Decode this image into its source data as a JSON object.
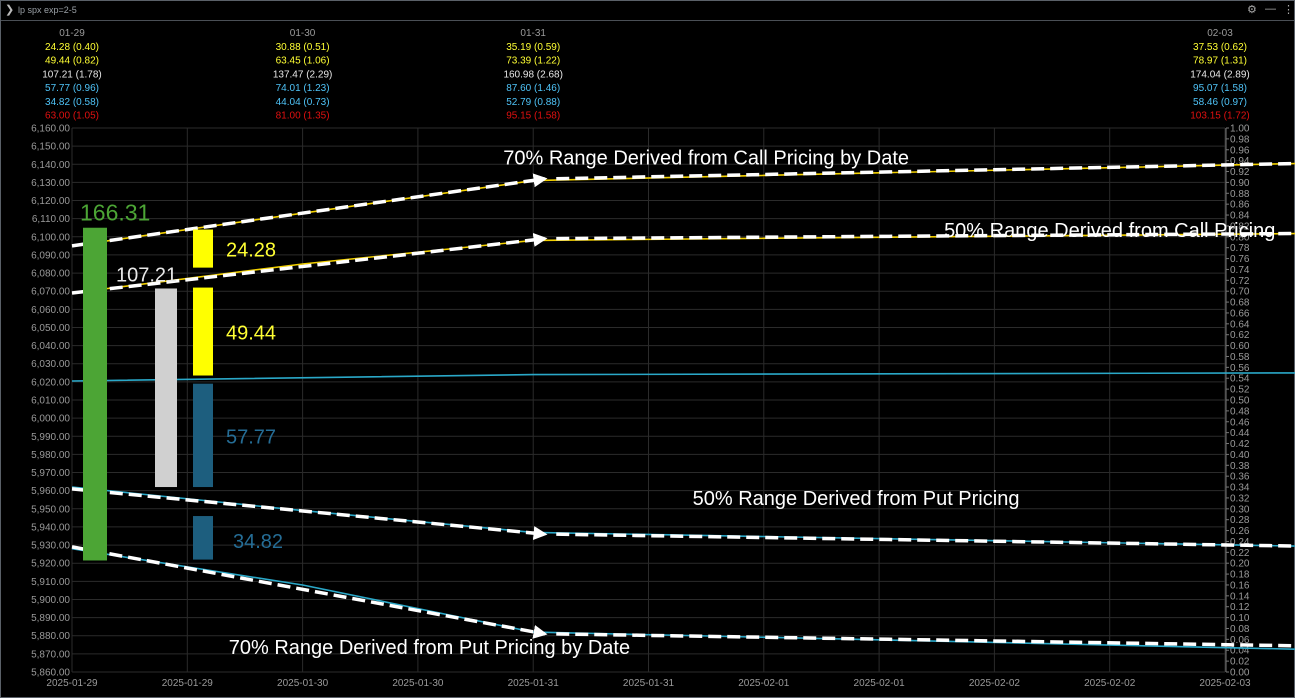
{
  "window": {
    "title": "lp spx exp=2-5"
  },
  "chart_data": {
    "type": "line",
    "xlabels": [
      "2025-01-29",
      "2025-01-29",
      "2025-01-30",
      "2025-01-30",
      "2025-01-31",
      "2025-01-31",
      "2025-02-01",
      "2025-02-01",
      "2025-02-02",
      "2025-02-02",
      "2025-02-03"
    ],
    "ylim_left": [
      5860,
      6160
    ],
    "ylim_right": [
      0,
      1
    ],
    "grid": true,
    "top_table": [
      {
        "date": "01-29",
        "rows": [
          {
            "text": "24.28 (0.40)",
            "color": "#ffff33"
          },
          {
            "text": "49.44 (0.82)",
            "color": "#ffff33"
          },
          {
            "text": "107.21 (1.78)",
            "color": "#e6e6e6"
          },
          {
            "text": "57.77 (0.96)",
            "color": "#4fc3f7"
          },
          {
            "text": "34.82 (0.58)",
            "color": "#4fc3f7"
          },
          {
            "text": "63.00 (1.05)",
            "color": "#e01010"
          }
        ]
      },
      {
        "date": "01-30",
        "rows": [
          {
            "text": "30.88 (0.51)",
            "color": "#ffff33"
          },
          {
            "text": "63.45 (1.06)",
            "color": "#ffff33"
          },
          {
            "text": "137.47 (2.29)",
            "color": "#e6e6e6"
          },
          {
            "text": "74.01 (1.23)",
            "color": "#4fc3f7"
          },
          {
            "text": "44.04 (0.73)",
            "color": "#4fc3f7"
          },
          {
            "text": "81.00 (1.35)",
            "color": "#e01010"
          }
        ]
      },
      {
        "date": "01-31",
        "rows": [
          {
            "text": "35.19 (0.59)",
            "color": "#ffff33"
          },
          {
            "text": "73.39 (1.22)",
            "color": "#ffff33"
          },
          {
            "text": "160.98 (2.68)",
            "color": "#e6e6e6"
          },
          {
            "text": "87.60 (1.46)",
            "color": "#4fc3f7"
          },
          {
            "text": "52.79 (0.88)",
            "color": "#4fc3f7"
          },
          {
            "text": "95.15 (1.58)",
            "color": "#e01010"
          }
        ]
      },
      {
        "date": "02-03",
        "rows": [
          {
            "text": "37.53 (0.62)",
            "color": "#ffff33"
          },
          {
            "text": "78.97 (1.31)",
            "color": "#ffff33"
          },
          {
            "text": "174.04 (2.89)",
            "color": "#e6e6e6"
          },
          {
            "text": "95.07 (1.58)",
            "color": "#4fc3f7"
          },
          {
            "text": "58.46 (0.97)",
            "color": "#4fc3f7"
          },
          {
            "text": "103.15 (1.72)",
            "color": "#e01010"
          }
        ]
      }
    ],
    "series": [
      {
        "color": "#f2d000",
        "points": [
          [
            0,
            6095
          ],
          [
            2,
            6113
          ],
          [
            4,
            6131
          ],
          [
            11,
            6141
          ]
        ]
      },
      {
        "color": "#f2d000",
        "points": [
          [
            0,
            6069
          ],
          [
            2,
            6085
          ],
          [
            4,
            6098
          ],
          [
            11,
            6102
          ]
        ]
      },
      {
        "color": "#2aa8c8",
        "points": [
          [
            0,
            6020.5
          ],
          [
            4,
            6024
          ],
          [
            11,
            6025
          ]
        ]
      },
      {
        "color": "#2aa8c8",
        "points": [
          [
            0,
            5962
          ],
          [
            2,
            5949
          ],
          [
            4,
            5937
          ],
          [
            11,
            5929
          ]
        ]
      },
      {
        "color": "#2aa8c8",
        "points": [
          [
            0,
            5928
          ],
          [
            2,
            5908
          ],
          [
            4,
            5882
          ],
          [
            11,
            5872
          ]
        ]
      }
    ],
    "dashed_arrows": [
      [
        [
          0,
          6095
        ],
        [
          4.1,
          6132
        ]
      ],
      [
        [
          4.2,
          6132
        ],
        [
          11.05,
          6141
        ]
      ],
      [
        [
          0,
          6069
        ],
        [
          4.1,
          6099
        ]
      ],
      [
        [
          4.2,
          6099
        ],
        [
          11.05,
          6102
        ]
      ],
      [
        [
          0,
          5961
        ],
        [
          4.1,
          5936
        ]
      ],
      [
        [
          4.2,
          5936
        ],
        [
          11.05,
          5929
        ]
      ],
      [
        [
          0,
          5929
        ],
        [
          4.1,
          5881
        ]
      ],
      [
        [
          4.2,
          5881
        ],
        [
          11.05,
          5874
        ]
      ]
    ],
    "bars": [
      {
        "value": 166.31,
        "from": 5921.5,
        "to": 6105.0,
        "color": "#4ca535",
        "slot": 0,
        "label_color": "#4ca535",
        "label_size": 23,
        "label_pos": "above"
      },
      {
        "value": 107.21,
        "from": 5962.0,
        "to": 6071.5,
        "color": "#d0d0d0",
        "slot": 1,
        "label_color": "#e8e8e8",
        "label_size": 20,
        "label_pos": "above"
      },
      {
        "value": 24.28,
        "from": 6083.0,
        "to": 6104.0,
        "color": "#ffff00",
        "slot": 2,
        "label_color": "#ffff33",
        "label_size": 20,
        "label_pos": "right"
      },
      {
        "value": 49.44,
        "from": 6023.5,
        "to": 6072.0,
        "color": "#ffff00",
        "slot": 2,
        "label_color": "#ffff33",
        "label_size": 20,
        "label_pos": "right"
      },
      {
        "value": 57.77,
        "from": 5962.0,
        "to": 6019.0,
        "color": "#1d5e7e",
        "slot": 2,
        "label_color": "#256d96",
        "label_size": 20,
        "label_pos": "right"
      },
      {
        "value": 34.82,
        "from": 5922.0,
        "to": 5946.0,
        "color": "#1d5e7e",
        "slot": 2,
        "label_color": "#256d96",
        "label_size": 20,
        "label_pos": "right"
      }
    ],
    "annotations": [
      {
        "text": "70% Range Derived from Call Pricing by Date",
        "x": 5.5,
        "y": 6140
      },
      {
        "text": "50% Range Derived from Call Pricing",
        "x": 9.0,
        "y": 6100
      },
      {
        "text": "50% Range Derived from Put Pricing",
        "x": 6.8,
        "y": 5952
      },
      {
        "text": "70% Range Derived from Put Pricing by Date",
        "x": 3.1,
        "y": 5870
      }
    ]
  }
}
